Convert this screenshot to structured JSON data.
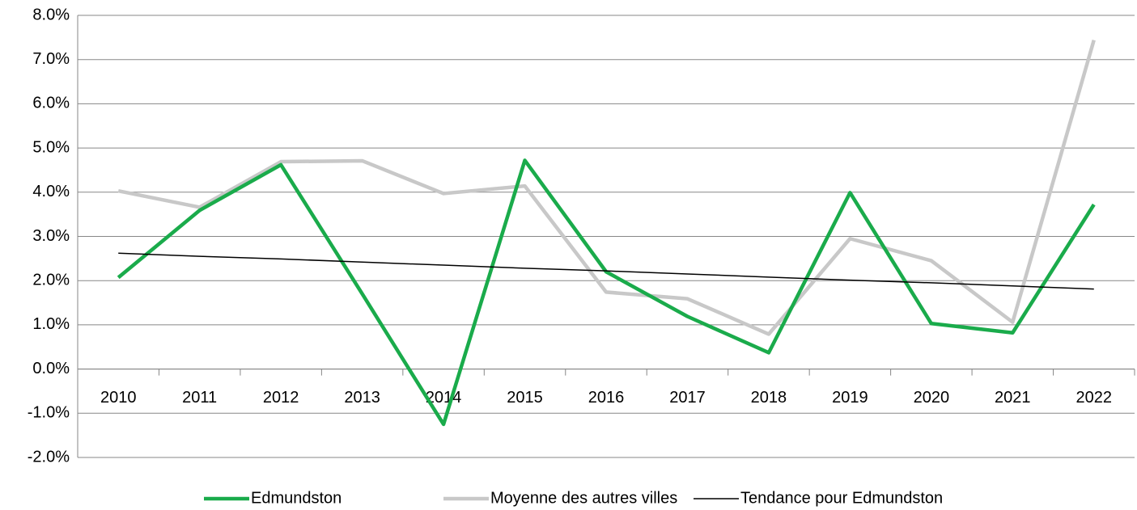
{
  "chart_data": {
    "type": "line",
    "categories": [
      "2010",
      "2011",
      "2012",
      "2013",
      "2014",
      "2015",
      "2016",
      "2017",
      "2018",
      "2019",
      "2020",
      "2021",
      "2022"
    ],
    "series": [
      {
        "name": "Edmundston",
        "color": "#1aab4b",
        "values": [
          2.07,
          3.59,
          4.62,
          1.7,
          -1.25,
          4.72,
          2.2,
          1.19,
          0.37,
          3.99,
          1.03,
          0.82,
          3.72
        ]
      },
      {
        "name": "Moyenne des autres villes",
        "color": "#c8c8c8",
        "values": [
          4.03,
          3.66,
          4.69,
          4.71,
          3.97,
          4.14,
          1.74,
          1.59,
          0.79,
          2.95,
          2.45,
          1.06,
          7.44
        ]
      },
      {
        "name": "Tendance pour Edmundston",
        "color": "#000000",
        "values": [
          2.62,
          2.55,
          2.49,
          2.42,
          2.35,
          2.28,
          2.22,
          2.15,
          2.08,
          2.01,
          1.95,
          1.88,
          1.81
        ]
      }
    ],
    "ylim": [
      -2,
      8
    ],
    "yticks": [
      {
        "value": -2,
        "label": "-2.0%"
      },
      {
        "value": -1,
        "label": "-1.0%"
      },
      {
        "value": 0,
        "label": "0.0%"
      },
      {
        "value": 1,
        "label": "1.0%"
      },
      {
        "value": 2,
        "label": "2.0%"
      },
      {
        "value": 3,
        "label": "3.0%"
      },
      {
        "value": 4,
        "label": "4.0%"
      },
      {
        "value": 5,
        "label": "5.0%"
      },
      {
        "value": 6,
        "label": "6.0%"
      },
      {
        "value": 7,
        "label": "7.0%"
      },
      {
        "value": 8,
        "label": "8.0%"
      }
    ],
    "grid": true,
    "legend": "bottom"
  }
}
